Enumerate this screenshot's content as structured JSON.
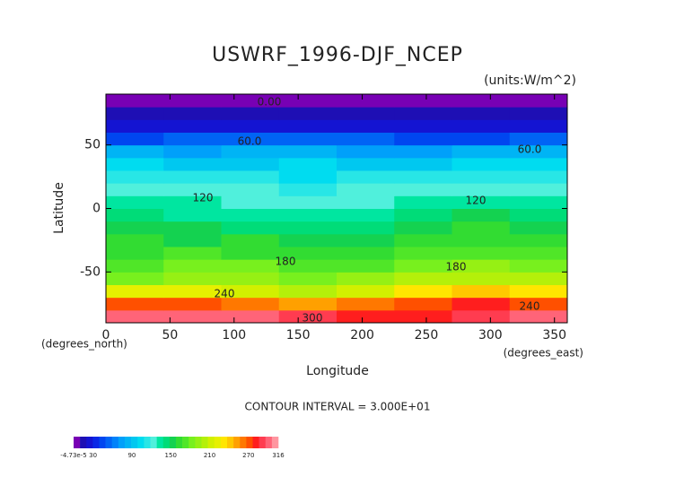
{
  "chart_data": {
    "type": "contour",
    "title": "USWRF_1996-DJF_NCEP",
    "subtitle": "(units:W/m^2)",
    "x_label": "Longitude",
    "y_label": "Latitude",
    "x_unit": "(degrees_east)",
    "y_unit": "(degrees_north)",
    "annotation": "CONTOUR INTERVAL = 3.000E+01",
    "xlim": [
      0,
      360
    ],
    "ylim": [
      -90,
      90
    ],
    "xticks": [
      0,
      50,
      100,
      150,
      200,
      250,
      300,
      350
    ],
    "yticks": [
      -50,
      0,
      50
    ],
    "x": [
      22.5,
      67.5,
      112.5,
      157.5,
      202.5,
      247.5,
      292.5,
      337.5
    ],
    "y": [
      -85,
      -75,
      -65,
      -55,
      -45,
      -35,
      -25,
      -15,
      -5,
      5,
      15,
      25,
      35,
      45,
      55,
      65,
      75,
      85
    ],
    "z": [
      [
        305,
        305,
        305,
        290,
        285,
        285,
        290,
        300
      ],
      [
        270,
        270,
        265,
        250,
        265,
        275,
        280,
        270
      ],
      [
        220,
        220,
        215,
        205,
        210,
        230,
        240,
        230
      ],
      [
        185,
        190,
        190,
        185,
        195,
        200,
        205,
        200
      ],
      [
        175,
        180,
        180,
        170,
        175,
        185,
        190,
        185
      ],
      [
        165,
        170,
        165,
        160,
        160,
        170,
        175,
        170
      ],
      [
        160,
        155,
        160,
        150,
        155,
        160,
        165,
        160
      ],
      [
        150,
        150,
        145,
        140,
        145,
        150,
        160,
        150
      ],
      [
        140,
        135,
        135,
        130,
        135,
        140,
        150,
        140
      ],
      [
        130,
        130,
        125,
        125,
        125,
        130,
        135,
        130
      ],
      [
        125,
        120,
        120,
        110,
        120,
        120,
        125,
        120
      ],
      [
        115,
        110,
        110,
        105,
        110,
        110,
        115,
        110
      ],
      [
        100,
        95,
        95,
        100,
        95,
        95,
        100,
        100
      ],
      [
        80,
        75,
        80,
        80,
        75,
        75,
        80,
        80
      ],
      [
        45,
        50,
        50,
        55,
        50,
        45,
        45,
        50
      ],
      [
        20,
        20,
        20,
        20,
        20,
        20,
        20,
        20
      ],
      [
        15,
        15,
        15,
        15,
        15,
        15,
        15,
        15
      ],
      [
        2,
        2,
        2,
        2,
        2,
        2,
        2,
        2
      ]
    ],
    "contour_labels": [
      {
        "value": 0,
        "label": "0.00"
      },
      {
        "value": 60,
        "label": "60.0"
      },
      {
        "value": 60,
        "label": "60.0"
      },
      {
        "value": 120,
        "label": "120"
      },
      {
        "value": 120,
        "label": "120"
      },
      {
        "value": 180,
        "label": "180"
      },
      {
        "value": 180,
        "label": "180"
      },
      {
        "value": 240,
        "label": "240"
      },
      {
        "value": 240,
        "label": "240"
      },
      {
        "value": 300,
        "label": "300"
      }
    ],
    "colorbar": {
      "lim": [
        -4.73e-05,
        316
      ],
      "ticks": [
        {
          "value": -4.73e-05,
          "label": "-4.73e-5"
        },
        30,
        90,
        150,
        210,
        270,
        316
      ],
      "colors": [
        "#7800b4",
        "#1e0fb4",
        "#1414d2",
        "#0a28e6",
        "#0046f0",
        "#0064f5",
        "#0082fa",
        "#00a0fa",
        "#00b4f5",
        "#00c8f0",
        "#00dcf0",
        "#28e6e6",
        "#50f0dc",
        "#00e6a0",
        "#00dc78",
        "#14d250",
        "#32dc32",
        "#50e628",
        "#78f01e",
        "#96f014",
        "#b4f00a",
        "#d2f000",
        "#e6f000",
        "#ffe600",
        "#ffc800",
        "#ffa000",
        "#ff7800",
        "#ff5000",
        "#ff1e1e",
        "#ff3c50",
        "#ff6478",
        "#ff96a0"
      ]
    }
  }
}
